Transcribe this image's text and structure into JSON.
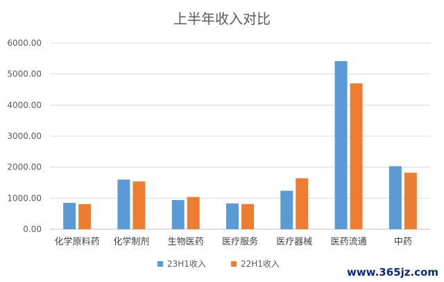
{
  "chart_data": {
    "type": "bar",
    "title": "上半年收入对比",
    "xlabel": "",
    "ylabel": "",
    "ylim": [
      0,
      6000
    ],
    "y_ticks": [
      "0.00",
      "1000.00",
      "2000.00",
      "3000.00",
      "4000.00",
      "5000.00",
      "6000.00"
    ],
    "categories": [
      "化学原料药",
      "化学制剂",
      "生物医药",
      "医疗服务",
      "医疗器械",
      "医药流通",
      "中药"
    ],
    "series": [
      {
        "name": "23H1收入",
        "color": "#5b9bd5",
        "values": [
          850,
          1600,
          940,
          830,
          1240,
          5420,
          2030
        ]
      },
      {
        "name": "22H1收入",
        "color": "#ed7d31",
        "values": [
          810,
          1540,
          1040,
          810,
          1640,
          4700,
          1820
        ]
      }
    ],
    "grid": true,
    "legend_position": "bottom"
  },
  "watermark": "www.365jz.com"
}
